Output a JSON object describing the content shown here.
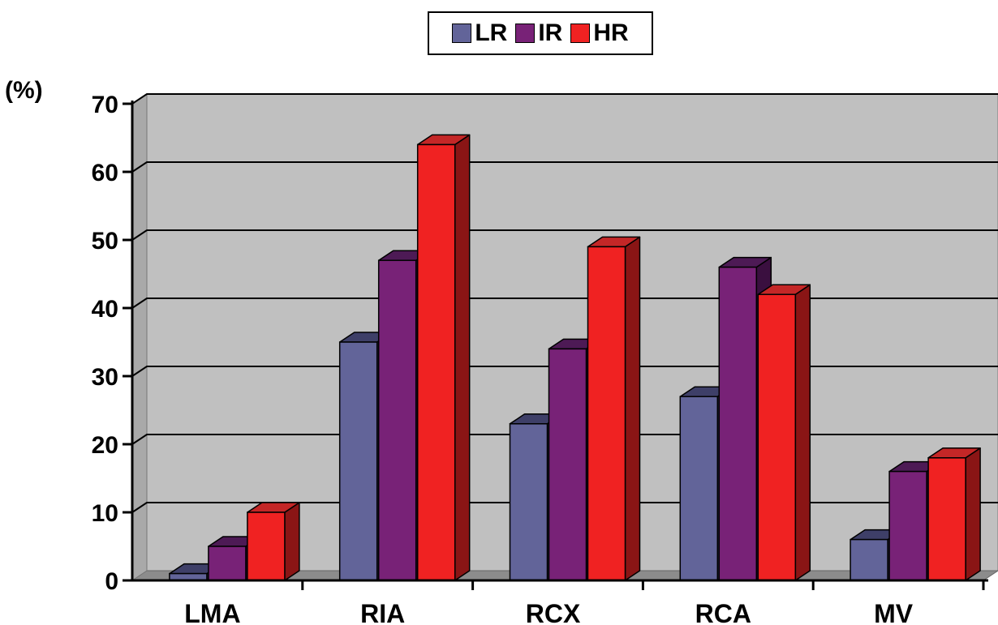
{
  "chart_data": {
    "type": "bar",
    "categories": [
      "LMA",
      "RIA",
      "RCX",
      "RCA",
      "MV"
    ],
    "series": [
      {
        "name": "LR",
        "color": "#626499",
        "top_color": "#3e3f68",
        "side_color": "#2e2f52",
        "values": [
          1,
          35,
          23,
          27,
          6
        ]
      },
      {
        "name": "IR",
        "color": "#782277",
        "top_color": "#4d1a55",
        "side_color": "#3a0f3f",
        "values": [
          5,
          47,
          34,
          46,
          16
        ]
      },
      {
        "name": "HR",
        "color": "#f02222",
        "top_color": "#c42727",
        "side_color": "#8a1515",
        "values": [
          10,
          64,
          49,
          42,
          18
        ]
      }
    ],
    "ylabel": "(%)",
    "ylim": [
      0,
      70
    ],
    "yticks": [
      0,
      10,
      20,
      30,
      40,
      50,
      60,
      70
    ],
    "grid": true,
    "legend_position": "top",
    "style": "3d-clustered-columns",
    "plot_background": "#c0c0c0"
  }
}
